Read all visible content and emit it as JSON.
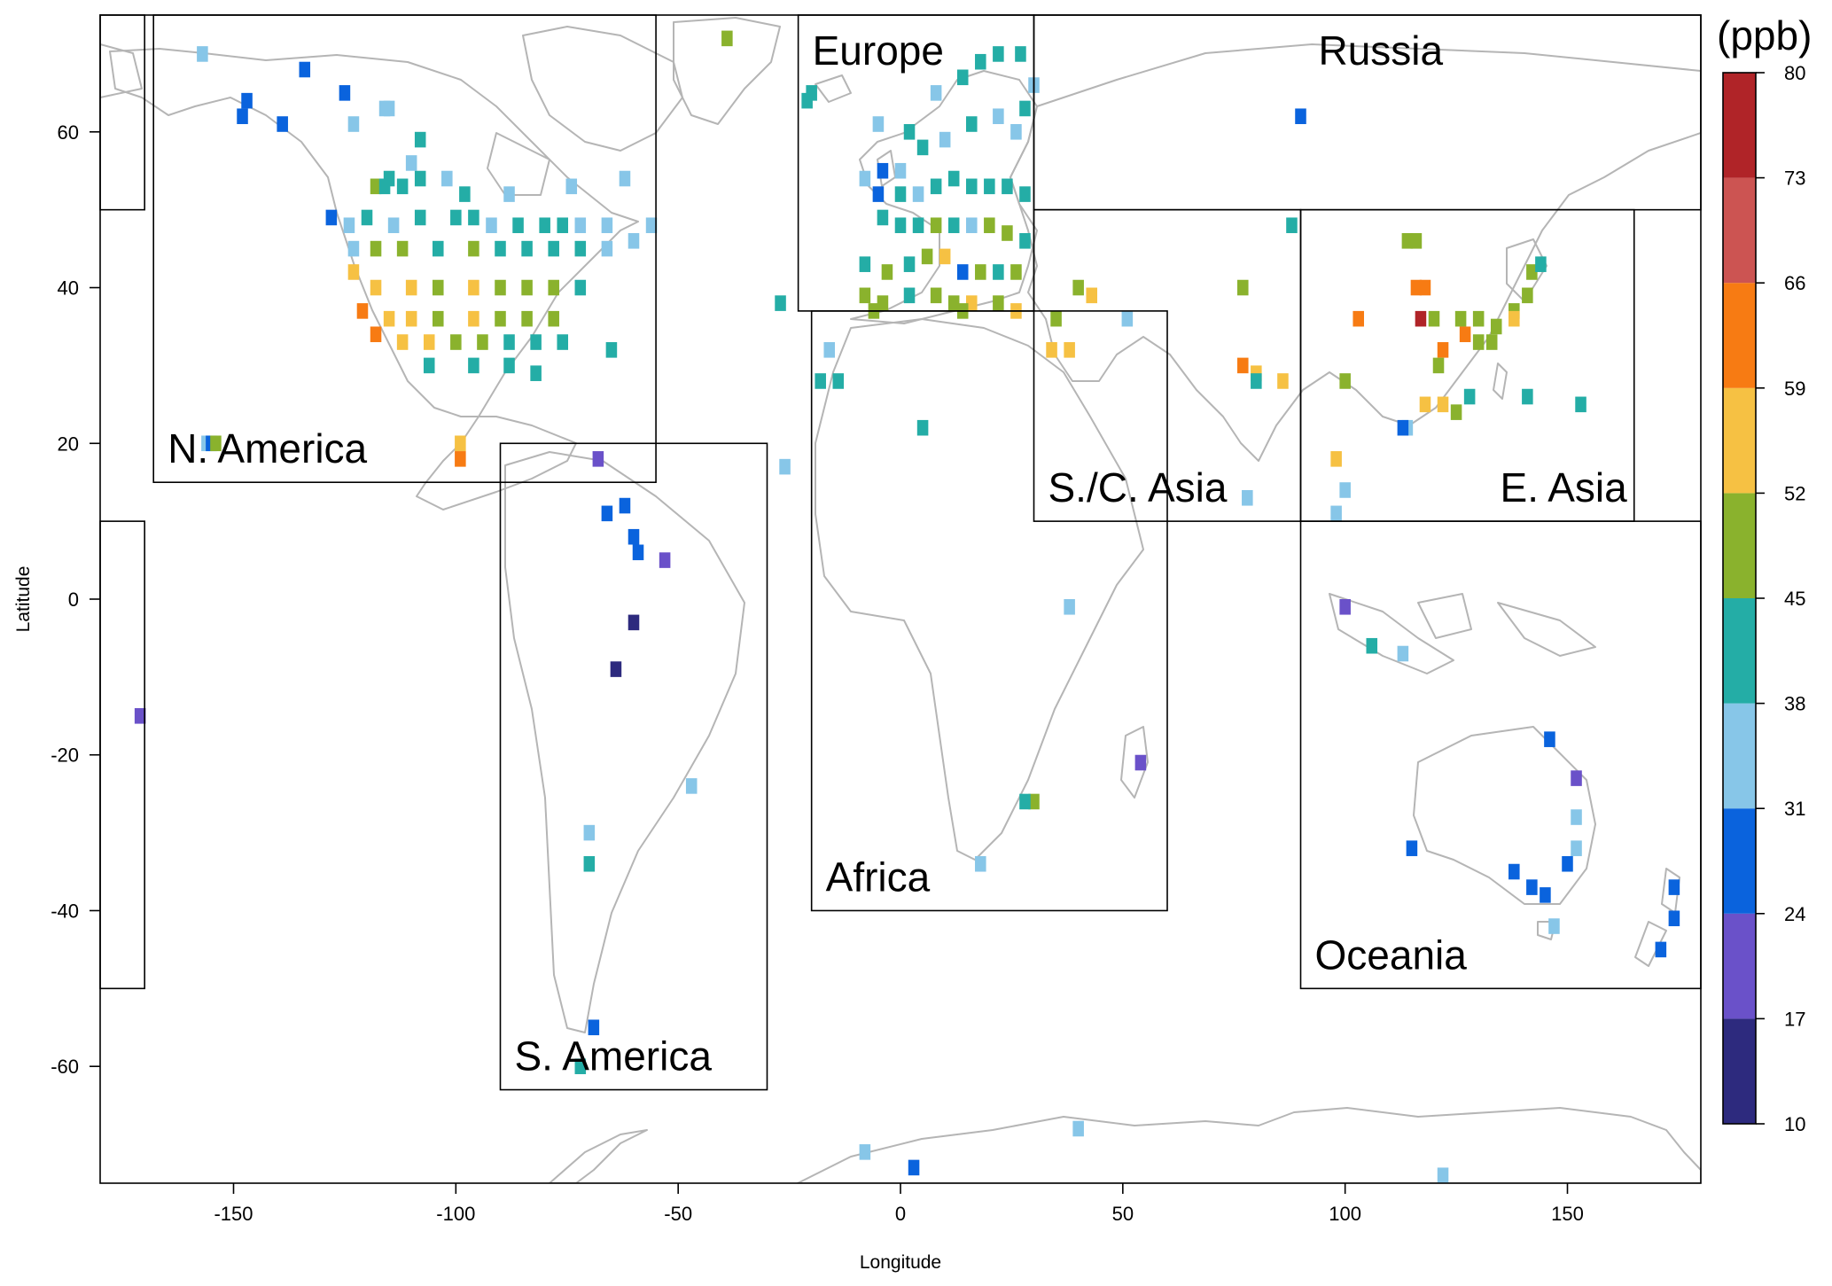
{
  "axes": {
    "xlabel": "Longitude",
    "ylabel": "Latitude",
    "xlim": [
      -180,
      180
    ],
    "ylim": [
      -75,
      75
    ],
    "xticks": [
      -150,
      -100,
      -50,
      0,
      50,
      100,
      150
    ],
    "yticks": [
      60,
      40,
      20,
      0,
      -20,
      -40,
      -60
    ]
  },
  "colorbar": {
    "unit": "(ppb)",
    "ticks": [
      80,
      73,
      66,
      59,
      52,
      45,
      38,
      31,
      24,
      17,
      10
    ],
    "bins": [
      {
        "min": 10,
        "max": 17,
        "color": "#2d2a7e"
      },
      {
        "min": 17,
        "max": 24,
        "color": "#6a51c9"
      },
      {
        "min": 24,
        "max": 31,
        "color": "#0a63dd"
      },
      {
        "min": 31,
        "max": 38,
        "color": "#87c6e8"
      },
      {
        "min": 38,
        "max": 45,
        "color": "#24ada6"
      },
      {
        "min": 45,
        "max": 52,
        "color": "#8ab22d"
      },
      {
        "min": 52,
        "max": 59,
        "color": "#f6c143"
      },
      {
        "min": 59,
        "max": 66,
        "color": "#f77b13"
      },
      {
        "min": 66,
        "max": 73,
        "color": "#cc5452"
      },
      {
        "min": 73,
        "max": 80,
        "color": "#b02428"
      }
    ]
  },
  "regions": [
    {
      "name": "N. America",
      "lon": [
        -168,
        -55
      ],
      "lat": [
        15,
        75
      ]
    },
    {
      "name": "S. America",
      "lon": [
        -90,
        -30
      ],
      "lat": [
        -63,
        20
      ]
    },
    {
      "name": "Europe",
      "lon": [
        -23,
        30
      ],
      "lat": [
        37,
        75
      ]
    },
    {
      "name": "Africa",
      "lon": [
        -20,
        60
      ],
      "lat": [
        -40,
        37
      ]
    },
    {
      "name": "Russia",
      "lon": [
        30,
        180
      ],
      "lat": [
        50,
        75
      ]
    },
    {
      "name": "S./C. Asia",
      "lon": [
        30,
        90
      ],
      "lat": [
        10,
        50
      ]
    },
    {
      "name": "E. Asia",
      "lon": [
        90,
        165
      ],
      "lat": [
        10,
        50
      ]
    },
    {
      "name": "Oceania",
      "lon": [
        90,
        180
      ],
      "lat": [
        -50,
        10
      ]
    },
    {
      "name": "",
      "lon": [
        -180,
        -170
      ],
      "lat": [
        50,
        75
      ]
    },
    {
      "name": "",
      "lon": [
        -180,
        -170
      ],
      "lat": [
        -50,
        10
      ]
    }
  ],
  "chart_data": {
    "type": "heatmap",
    "title": "",
    "xlabel": "Longitude",
    "ylabel": "Latitude",
    "value_unit": "ppb",
    "cells": [
      [
        -157,
        70,
        35
      ],
      [
        -134,
        68,
        28
      ],
      [
        -125,
        65,
        28
      ],
      [
        -147,
        64,
        28
      ],
      [
        -148,
        62,
        28
      ],
      [
        -139,
        61,
        28
      ],
      [
        -123,
        61,
        35
      ],
      [
        -116,
        63,
        35
      ],
      [
        -115,
        63,
        35
      ],
      [
        -108,
        59,
        42
      ],
      [
        -110,
        56,
        35
      ],
      [
        -115,
        54,
        42
      ],
      [
        -118,
        53,
        49
      ],
      [
        -116,
        53,
        42
      ],
      [
        -112,
        53,
        42
      ],
      [
        -108,
        54,
        42
      ],
      [
        -102,
        54,
        35
      ],
      [
        -98,
        52,
        42
      ],
      [
        -88,
        52,
        35
      ],
      [
        -74,
        53,
        35
      ],
      [
        -62,
        54,
        35
      ],
      [
        -128,
        49,
        28
      ],
      [
        -124,
        48,
        35
      ],
      [
        -120,
        49,
        42
      ],
      [
        -114,
        48,
        35
      ],
      [
        -108,
        49,
        42
      ],
      [
        -100,
        49,
        42
      ],
      [
        -96,
        49,
        42
      ],
      [
        -92,
        48,
        35
      ],
      [
        -86,
        48,
        42
      ],
      [
        -80,
        48,
        42
      ],
      [
        -76,
        48,
        42
      ],
      [
        -72,
        48,
        35
      ],
      [
        -66,
        48,
        35
      ],
      [
        -60,
        46,
        35
      ],
      [
        -56,
        48,
        35
      ],
      [
        -123,
        45,
        35
      ],
      [
        -118,
        45,
        49
      ],
      [
        -112,
        45,
        49
      ],
      [
        -104,
        45,
        42
      ],
      [
        -96,
        45,
        49
      ],
      [
        -90,
        45,
        42
      ],
      [
        -84,
        45,
        42
      ],
      [
        -78,
        45,
        42
      ],
      [
        -72,
        45,
        42
      ],
      [
        -66,
        45,
        35
      ],
      [
        -123,
        42,
        56
      ],
      [
        -118,
        40,
        56
      ],
      [
        -110,
        40,
        56
      ],
      [
        -104,
        40,
        49
      ],
      [
        -96,
        40,
        56
      ],
      [
        -90,
        40,
        49
      ],
      [
        -84,
        40,
        49
      ],
      [
        -78,
        40,
        49
      ],
      [
        -72,
        40,
        42
      ],
      [
        -121,
        37,
        63
      ],
      [
        -115,
        36,
        56
      ],
      [
        -110,
        36,
        56
      ],
      [
        -104,
        36,
        49
      ],
      [
        -96,
        36,
        56
      ],
      [
        -90,
        36,
        49
      ],
      [
        -84,
        36,
        49
      ],
      [
        -78,
        36,
        49
      ],
      [
        -118,
        34,
        63
      ],
      [
        -112,
        33,
        56
      ],
      [
        -106,
        33,
        56
      ],
      [
        -100,
        33,
        49
      ],
      [
        -94,
        33,
        49
      ],
      [
        -88,
        33,
        42
      ],
      [
        -82,
        33,
        42
      ],
      [
        -76,
        33,
        42
      ],
      [
        -65,
        32,
        42
      ],
      [
        -106,
        30,
        42
      ],
      [
        -96,
        30,
        42
      ],
      [
        -88,
        30,
        42
      ],
      [
        -82,
        29,
        42
      ],
      [
        -99,
        20,
        56
      ],
      [
        -99,
        18,
        63
      ],
      [
        -156,
        20,
        35
      ],
      [
        -155,
        20,
        28
      ],
      [
        -154,
        20,
        49
      ],
      [
        -20,
        65,
        42
      ],
      [
        -21,
        64,
        42
      ],
      [
        -5,
        61,
        35
      ],
      [
        2,
        60,
        42
      ],
      [
        8,
        65,
        35
      ],
      [
        14,
        67,
        42
      ],
      [
        18,
        69,
        42
      ],
      [
        22,
        70,
        42
      ],
      [
        27,
        70,
        42
      ],
      [
        30,
        66,
        35
      ],
      [
        28,
        63,
        42
      ],
      [
        26,
        60,
        35
      ],
      [
        22,
        62,
        35
      ],
      [
        16,
        61,
        42
      ],
      [
        10,
        59,
        35
      ],
      [
        5,
        58,
        42
      ],
      [
        0,
        55,
        35
      ],
      [
        -4,
        55,
        28
      ],
      [
        -8,
        54,
        35
      ],
      [
        -5,
        52,
        28
      ],
      [
        0,
        52,
        42
      ],
      [
        4,
        52,
        35
      ],
      [
        8,
        53,
        42
      ],
      [
        12,
        54,
        42
      ],
      [
        16,
        53,
        42
      ],
      [
        20,
        53,
        42
      ],
      [
        24,
        53,
        42
      ],
      [
        28,
        52,
        42
      ],
      [
        -4,
        49,
        42
      ],
      [
        0,
        48,
        42
      ],
      [
        4,
        48,
        42
      ],
      [
        8,
        48,
        49
      ],
      [
        12,
        48,
        42
      ],
      [
        16,
        48,
        35
      ],
      [
        20,
        48,
        49
      ],
      [
        24,
        47,
        49
      ],
      [
        28,
        46,
        42
      ],
      [
        -8,
        43,
        42
      ],
      [
        -3,
        42,
        49
      ],
      [
        2,
        43,
        42
      ],
      [
        6,
        44,
        49
      ],
      [
        10,
        44,
        56
      ],
      [
        14,
        42,
        28
      ],
      [
        18,
        42,
        49
      ],
      [
        22,
        42,
        42
      ],
      [
        26,
        42,
        49
      ],
      [
        -8,
        39,
        49
      ],
      [
        -4,
        38,
        49
      ],
      [
        2,
        39,
        42
      ],
      [
        8,
        39,
        49
      ],
      [
        12,
        38,
        49
      ],
      [
        16,
        38,
        56
      ],
      [
        22,
        38,
        49
      ],
      [
        -6,
        37,
        49
      ],
      [
        14,
        37,
        49
      ],
      [
        26,
        37,
        56
      ],
      [
        -39,
        72,
        49
      ],
      [
        -27,
        38,
        42
      ],
      [
        -16,
        32,
        35
      ],
      [
        -18,
        28,
        42
      ],
      [
        -14,
        28,
        42
      ],
      [
        5,
        22,
        42
      ],
      [
        -26,
        17,
        35
      ],
      [
        40,
        40,
        49
      ],
      [
        43,
        39,
        56
      ],
      [
        35,
        36,
        49
      ],
      [
        34,
        32,
        56
      ],
      [
        38,
        32,
        56
      ],
      [
        51,
        36,
        35
      ],
      [
        77,
        30,
        63
      ],
      [
        80,
        29,
        56
      ],
      [
        80,
        28,
        42
      ],
      [
        86,
        28,
        56
      ],
      [
        78,
        13,
        35
      ],
      [
        77,
        40,
        49
      ],
      [
        88,
        48,
        42
      ],
      [
        116,
        40,
        63
      ],
      [
        118,
        40,
        63
      ],
      [
        117,
        36,
        80
      ],
      [
        103,
        36,
        63
      ],
      [
        120,
        36,
        49
      ],
      [
        122,
        32,
        63
      ],
      [
        121,
        30,
        49
      ],
      [
        118,
        25,
        56
      ],
      [
        122,
        25,
        56
      ],
      [
        125,
        24,
        49
      ],
      [
        114,
        22,
        35
      ],
      [
        113,
        22,
        28
      ],
      [
        126,
        36,
        49
      ],
      [
        130,
        36,
        49
      ],
      [
        134,
        35,
        49
      ],
      [
        138,
        37,
        49
      ],
      [
        141,
        39,
        49
      ],
      [
        142,
        42,
        49
      ],
      [
        144,
        43,
        42
      ],
      [
        127,
        34,
        63
      ],
      [
        133,
        33,
        49
      ],
      [
        130,
        33,
        49
      ],
      [
        138,
        36,
        56
      ],
      [
        128,
        26,
        42
      ],
      [
        141,
        26,
        42
      ],
      [
        153,
        25,
        42
      ],
      [
        114,
        46,
        49
      ],
      [
        116,
        46,
        49
      ],
      [
        100,
        28,
        49
      ],
      [
        98,
        18,
        56
      ],
      [
        100,
        14,
        35
      ],
      [
        98,
        11,
        35
      ],
      [
        106,
        -6,
        42
      ],
      [
        113,
        -7,
        35
      ],
      [
        100,
        -1,
        21
      ],
      [
        -62,
        12,
        28
      ],
      [
        -66,
        11,
        28
      ],
      [
        -60,
        8,
        28
      ],
      [
        -59,
        6,
        28
      ],
      [
        -53,
        5,
        21
      ],
      [
        -60,
        -3,
        14
      ],
      [
        -64,
        -9,
        14
      ],
      [
        -47,
        -24,
        35
      ],
      [
        -70,
        -30,
        35
      ],
      [
        -70,
        -34,
        42
      ],
      [
        -69,
        -55,
        28
      ],
      [
        -72,
        -60,
        42
      ],
      [
        -68,
        18,
        21
      ],
      [
        54,
        -21,
        21
      ],
      [
        30,
        -26,
        49
      ],
      [
        28,
        -26,
        42
      ],
      [
        18,
        -34,
        35
      ],
      [
        38,
        -1,
        35
      ],
      [
        115,
        -32,
        28
      ],
      [
        146,
        -18,
        28
      ],
      [
        152,
        -23,
        21
      ],
      [
        152,
        -28,
        35
      ],
      [
        152,
        -32,
        35
      ],
      [
        150,
        -34,
        28
      ],
      [
        145,
        -38,
        28
      ],
      [
        138,
        -35,
        28
      ],
      [
        142,
        -37,
        28
      ],
      [
        174,
        -37,
        28
      ],
      [
        174,
        -41,
        28
      ],
      [
        171,
        -45,
        28
      ],
      [
        147,
        -42,
        35
      ],
      [
        -171,
        -15,
        21
      ],
      [
        -8,
        -71,
        35
      ],
      [
        3,
        -73,
        28
      ],
      [
        40,
        -68,
        35
      ],
      [
        122,
        -74,
        35
      ],
      [
        90,
        62,
        28
      ]
    ]
  }
}
